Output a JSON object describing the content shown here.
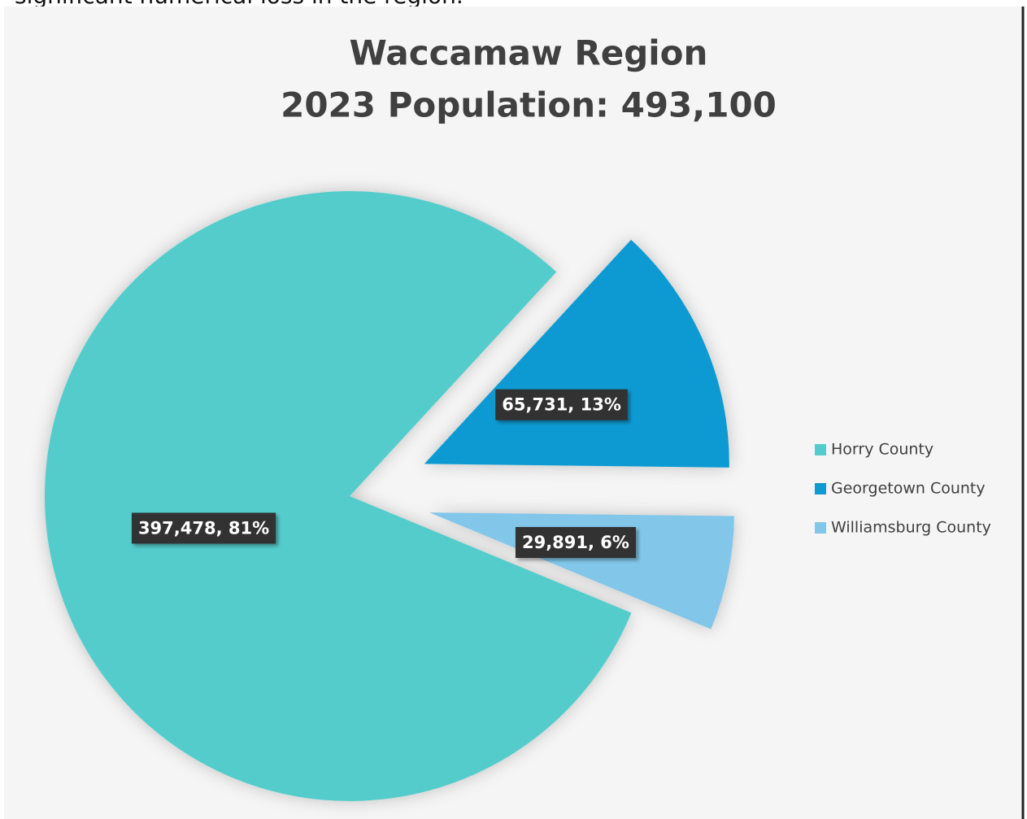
{
  "context_text": "significant numerical loss in the region.",
  "chart_data": {
    "type": "pie",
    "title": [
      "Waccamaw Region",
      "2023 Population: 493,100"
    ],
    "categories": [
      "Horry County",
      "Georgetown County",
      "Williamsburg County"
    ],
    "values": [
      397478,
      65731,
      29891
    ],
    "value_labels": [
      "397,478, 81%",
      "65,731, 13%",
      "29,891, 6%"
    ],
    "colors": [
      "#55cccc",
      "#0f9ad2",
      "#82c6ea"
    ],
    "explode": [
      false,
      true,
      true
    ],
    "legend": "right"
  }
}
